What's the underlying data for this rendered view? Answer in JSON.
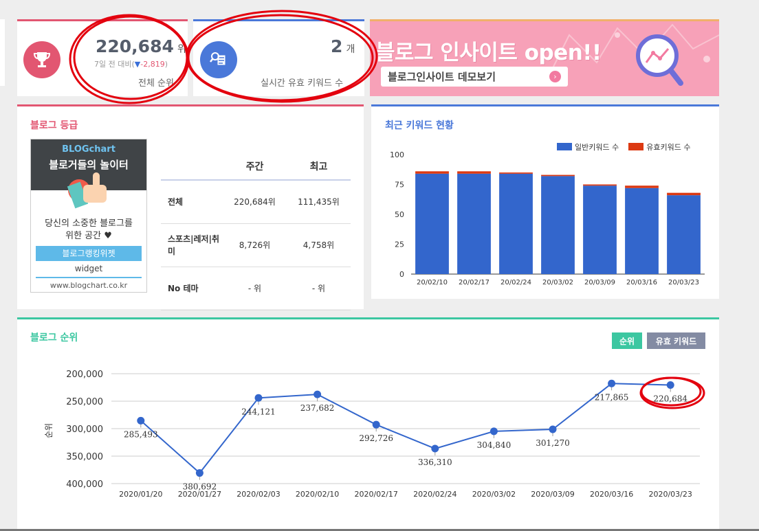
{
  "rank_card": {
    "value": "220,684",
    "unit": "위",
    "change_prefix": "7일 전 대비(",
    "change_arrow": "▼",
    "change_value": "-2,819",
    "change_suffix": ")",
    "label": "전체 순위",
    "icon": "trophy-icon",
    "icon_color": "#e25671"
  },
  "keyword_card": {
    "value": "2",
    "unit": "개",
    "label": "실시간 유효 키워드 수",
    "icon": "keyword-search-icon",
    "icon_color": "#4a78d9"
  },
  "banner": {
    "title": "블로그 인사이트 open!!",
    "button_label": "블로그인사이트 데모보기",
    "icon": "magnifier-chart-icon"
  },
  "grade": {
    "title": "블로그 등급",
    "widget": {
      "logo": "BLOGchart",
      "tagline": "블로거들의 놀이터",
      "desc_line1": "당신의 소중한 블로그를",
      "desc_line2": "위한 공간 ♥",
      "button_label": "블로그랭킹위젯",
      "sub_label": "widget",
      "url": "www.blogchart.co.kr",
      "icon": "thumbs-up-hand-icon"
    },
    "table": {
      "headers": [
        "주간",
        "최고"
      ],
      "rows": [
        {
          "label": "전체",
          "weekly": "220,684위",
          "best": "111,435위"
        },
        {
          "label": "스포츠|레저|취미",
          "weekly": "8,726위",
          "best": "4,758위"
        },
        {
          "label": "No 테마",
          "weekly": "- 위",
          "best": "- 위"
        }
      ]
    }
  },
  "keyword_chart": {
    "title": "최근 키워드 현황",
    "legend": [
      {
        "name": "일반키워드 수",
        "color": "#3366cc"
      },
      {
        "name": "유효키워드 수",
        "color": "#dc3912"
      }
    ]
  },
  "rank_chart": {
    "title": "블로그 순위",
    "btn_rank": "순위",
    "btn_keyword": "유효 키워드",
    "y_title": "순위"
  },
  "chart_data": [
    {
      "type": "bar",
      "stacked": true,
      "categories": [
        "20/02/10",
        "20/02/17",
        "20/02/24",
        "20/03/02",
        "20/03/09",
        "20/03/16",
        "20/03/23"
      ],
      "series": [
        {
          "name": "일반키워드 수",
          "color": "#3366cc",
          "values": [
            84,
            84,
            84,
            82,
            74,
            72,
            66
          ]
        },
        {
          "name": "유효키워드 수",
          "color": "#dc3912",
          "values": [
            2,
            2,
            1,
            1,
            1,
            2,
            2
          ]
        }
      ],
      "ylim": [
        0,
        100
      ],
      "yticks": [
        0,
        25,
        50,
        75,
        100
      ],
      "legend": "top-right",
      "grid": false
    },
    {
      "type": "line",
      "x": [
        "2020/01/20",
        "2020/01/27",
        "2020/02/03",
        "2020/02/10",
        "2020/02/17",
        "2020/02/24",
        "2020/03/02",
        "2020/03/09",
        "2020/03/16",
        "2020/03/23"
      ],
      "series": [
        {
          "color": "#3366cc",
          "values": [
            285493,
            380692,
            244121,
            237682,
            292726,
            336310,
            304840,
            301270,
            217865,
            220684
          ]
        }
      ],
      "labels": [
        "285,493",
        "380,692",
        "244,121",
        "237,682",
        "292,726",
        "336,310",
        "304,840",
        "301,270",
        "217,865",
        "220,684"
      ],
      "ylabel": "순위",
      "ylim": [
        200000,
        400000
      ],
      "y_reversed": true,
      "yticks": [
        "200,000",
        "250,000",
        "300,000",
        "350,000",
        "400,000"
      ],
      "grid": true
    }
  ]
}
